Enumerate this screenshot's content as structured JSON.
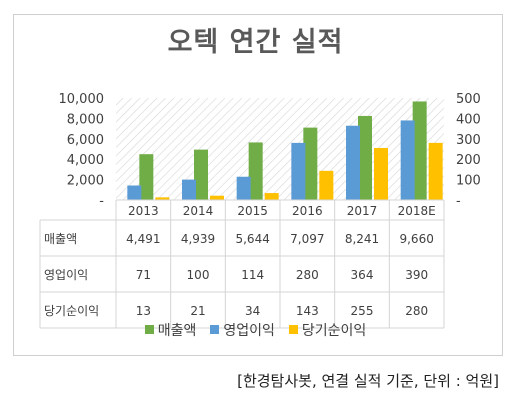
{
  "title": "오텍 연간 실적",
  "source_note": "[한경탐사봇, 연결 실적 기준, 단위 : 억원]",
  "colors": {
    "revenue": "#70AD47",
    "op_income": "#5B9BD5",
    "net_income": "#FFC000",
    "hatch": "#cfcfcf",
    "border": "#d4d4d4"
  },
  "chart_data": {
    "type": "bar",
    "categories": [
      "2013",
      "2014",
      "2015",
      "2016",
      "2017",
      "2018E"
    ],
    "series": [
      {
        "name": "매출액",
        "axis": "left",
        "values": [
          4491,
          4939,
          5644,
          7097,
          8241,
          9660
        ]
      },
      {
        "name": "영업이익",
        "axis": "right",
        "values": [
          71,
          100,
          114,
          280,
          364,
          390
        ]
      },
      {
        "name": "당기순이익",
        "axis": "right",
        "values": [
          13,
          21,
          34,
          143,
          255,
          280
        ]
      }
    ],
    "ylim_left": [
      0,
      10000
    ],
    "ylim_right": [
      0,
      500
    ],
    "yticks_left": [
      "10,000",
      "8,000",
      "6,000",
      "4,000",
      "2,000",
      "-"
    ],
    "yticks_right": [
      "500",
      "400",
      "300",
      "200",
      "100",
      "-"
    ],
    "table_rows": [
      {
        "label": "매출액",
        "cells": [
          "4,491",
          "4,939",
          "5,644",
          "7,097",
          "8,241",
          "9,660"
        ]
      },
      {
        "label": "영업이익",
        "cells": [
          "71",
          "100",
          "114",
          "280",
          "364",
          "390"
        ]
      },
      {
        "label": "당기순이익",
        "cells": [
          "13",
          "21",
          "34",
          "143",
          "255",
          "280"
        ]
      }
    ],
    "legend": [
      "매출액",
      "영업이익",
      "당기순이익"
    ],
    "legend_position": "bottom",
    "background_pattern": "diagonal-hatch"
  }
}
